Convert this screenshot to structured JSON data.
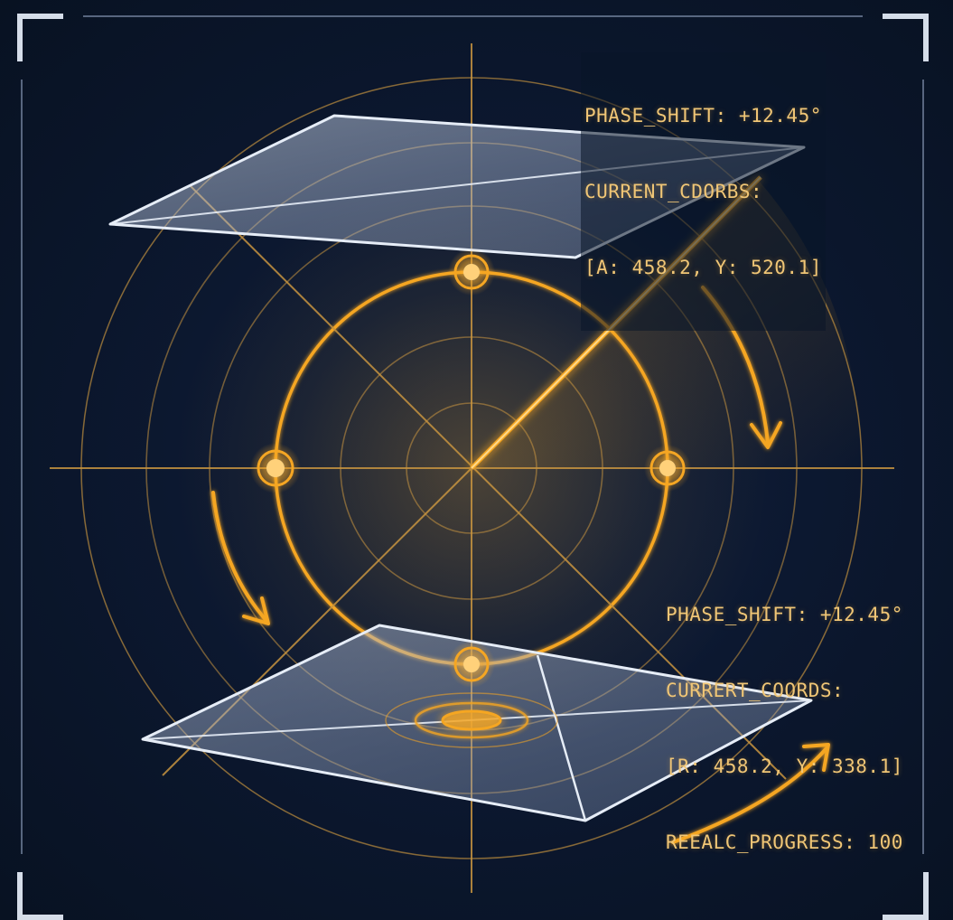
{
  "readout_top": {
    "phase_shift": "PHASE_SHIFT: +12.45°",
    "coords_label": "CURRENT_CDORBS:",
    "coords_value": "[A: 458.2, Y: 520.1]"
  },
  "readout_bottom": {
    "phase_shift": "PHASE_SHIFT: +12.45°",
    "coords_label": "CURRERT_COORDS:",
    "coords_value": "[R: 458.2, Y: 338.1]",
    "progress": "REEALC_PROGRESS: 100"
  },
  "colors": {
    "background": "#0a1628",
    "accent": "#f5a623",
    "accent_glow": "#ffcf70",
    "plane_stroke": "#dfe8f5",
    "plane_fill": "#a9b8d4",
    "frame": "#c9d3e2"
  }
}
